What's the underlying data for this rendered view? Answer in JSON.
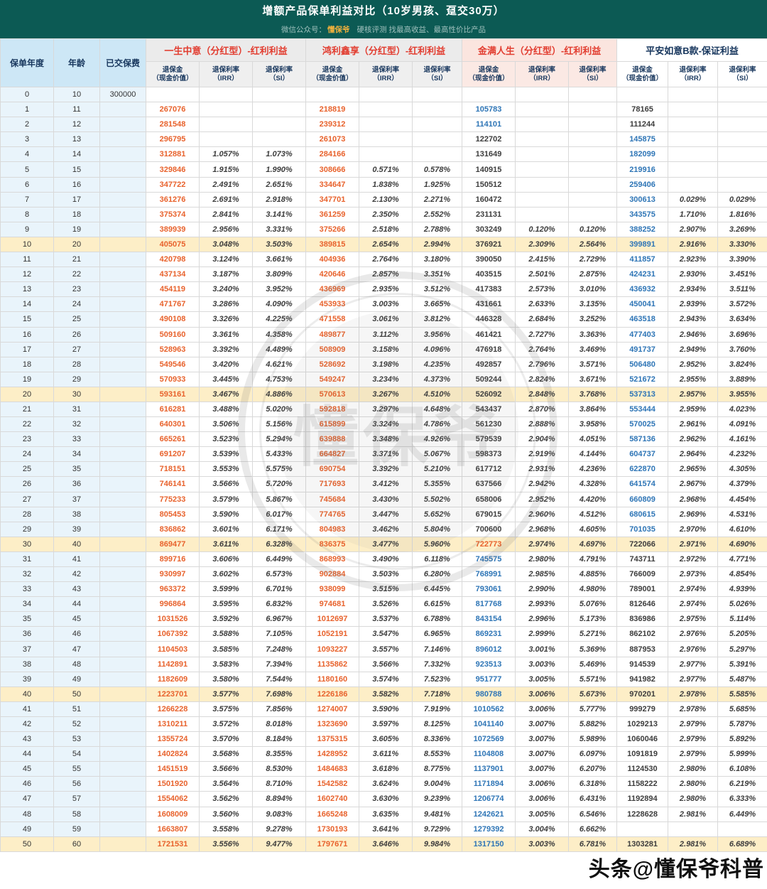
{
  "title": "增额产品保单利益对比（10岁男孩、趸交30万）",
  "subtitle": {
    "prefix": "微信公众号：",
    "brand": "懂保爷",
    "rest": "硬核评测 找最高收益、最高性价比产品"
  },
  "watermark_text": "头条@懂保爷科普",
  "seal_text": "懂保爷",
  "colors": {
    "header_bar": "#0c5a54",
    "brand_accent": "#f3b13c",
    "product_red": "#e23d30",
    "value_orange": "#e8622c",
    "value_blue": "#2e75b6",
    "row_highlight": "#fdeec7",
    "left_col_blue": "#e9f4fb"
  },
  "header": {
    "left_columns": [
      "保单年度",
      "年龄",
      "已交保费"
    ],
    "products": [
      {
        "name": "一生中意（分红型）-红利利益"
      },
      {
        "name": "鸿利鑫享（分红型）-红利利益"
      },
      {
        "name": "金满人生（分红型）-红利利益"
      },
      {
        "name": "平安如意B款-保证利益"
      }
    ],
    "sub_columns": [
      {
        "line1": "退保金",
        "line2": "（现金价值）"
      },
      {
        "line1": "退保利率",
        "line2": "（IRR）"
      },
      {
        "line1": "退保利率",
        "line2": "（SI）"
      }
    ]
  },
  "rows": [
    {
      "y": "0",
      "a": "10",
      "p": "300000",
      "v": [
        "",
        "",
        "",
        "",
        "",
        "",
        "",
        "",
        "",
        "",
        "",
        ""
      ],
      "c": "kkkk",
      "hl": false
    },
    {
      "y": "1",
      "a": "11",
      "p": "",
      "v": [
        "267076",
        "",
        "",
        "218819",
        "",
        "",
        "105783",
        "",
        "",
        "78165",
        "",
        ""
      ],
      "c": "oobk",
      "hl": false
    },
    {
      "y": "2",
      "a": "12",
      "p": "",
      "v": [
        "281548",
        "",
        "",
        "239312",
        "",
        "",
        "114101",
        "",
        "",
        "111244",
        "",
        ""
      ],
      "c": "oobk",
      "hl": false
    },
    {
      "y": "3",
      "a": "13",
      "p": "",
      "v": [
        "296795",
        "",
        "",
        "261073",
        "",
        "",
        "122702",
        "",
        "",
        "145875",
        "",
        ""
      ],
      "c": "ookb",
      "hl": false
    },
    {
      "y": "4",
      "a": "14",
      "p": "",
      "v": [
        "312881",
        "1.057%",
        "1.073%",
        "284166",
        "",
        "",
        "131649",
        "",
        "",
        "182099",
        "",
        ""
      ],
      "c": "ookb",
      "hl": false
    },
    {
      "y": "5",
      "a": "15",
      "p": "",
      "v": [
        "329846",
        "1.915%",
        "1.990%",
        "308666",
        "0.571%",
        "0.578%",
        "140915",
        "",
        "",
        "219916",
        "",
        ""
      ],
      "c": "ookb",
      "hl": false
    },
    {
      "y": "6",
      "a": "16",
      "p": "",
      "v": [
        "347722",
        "2.491%",
        "2.651%",
        "334647",
        "1.838%",
        "1.925%",
        "150512",
        "",
        "",
        "259406",
        "",
        ""
      ],
      "c": "ookb",
      "hl": false
    },
    {
      "y": "7",
      "a": "17",
      "p": "",
      "v": [
        "361276",
        "2.691%",
        "2.918%",
        "347701",
        "2.130%",
        "2.271%",
        "160472",
        "",
        "",
        "300613",
        "0.029%",
        "0.029%"
      ],
      "c": "ookb",
      "hl": false
    },
    {
      "y": "8",
      "a": "18",
      "p": "",
      "v": [
        "375374",
        "2.841%",
        "3.141%",
        "361259",
        "2.350%",
        "2.552%",
        "231131",
        "",
        "",
        "343575",
        "1.710%",
        "1.816%"
      ],
      "c": "ookb",
      "hl": false
    },
    {
      "y": "9",
      "a": "19",
      "p": "",
      "v": [
        "389939",
        "2.956%",
        "3.331%",
        "375266",
        "2.518%",
        "2.788%",
        "303249",
        "0.120%",
        "0.120%",
        "388252",
        "2.907%",
        "3.269%"
      ],
      "c": "ookb",
      "hl": false
    },
    {
      "y": "10",
      "a": "20",
      "p": "",
      "v": [
        "405075",
        "3.048%",
        "3.503%",
        "389815",
        "2.654%",
        "2.994%",
        "376921",
        "2.309%",
        "2.564%",
        "399891",
        "2.916%",
        "3.330%"
      ],
      "c": "ookb",
      "hl": true
    },
    {
      "y": "11",
      "a": "21",
      "p": "",
      "v": [
        "420798",
        "3.124%",
        "3.661%",
        "404936",
        "2.764%",
        "3.180%",
        "390050",
        "2.415%",
        "2.729%",
        "411857",
        "2.923%",
        "3.390%"
      ],
      "c": "ookb",
      "hl": false
    },
    {
      "y": "12",
      "a": "22",
      "p": "",
      "v": [
        "437134",
        "3.187%",
        "3.809%",
        "420646",
        "2.857%",
        "3.351%",
        "403515",
        "2.501%",
        "2.875%",
        "424231",
        "2.930%",
        "3.451%"
      ],
      "c": "ookb",
      "hl": false
    },
    {
      "y": "13",
      "a": "23",
      "p": "",
      "v": [
        "454119",
        "3.240%",
        "3.952%",
        "436969",
        "2.935%",
        "3.512%",
        "417383",
        "2.573%",
        "3.010%",
        "436932",
        "2.934%",
        "3.511%"
      ],
      "c": "ookb",
      "hl": false
    },
    {
      "y": "14",
      "a": "24",
      "p": "",
      "v": [
        "471767",
        "3.286%",
        "4.090%",
        "453933",
        "3.003%",
        "3.665%",
        "431661",
        "2.633%",
        "3.135%",
        "450041",
        "2.939%",
        "3.572%"
      ],
      "c": "ookb",
      "hl": false
    },
    {
      "y": "15",
      "a": "25",
      "p": "",
      "v": [
        "490108",
        "3.326%",
        "4.225%",
        "471558",
        "3.061%",
        "3.812%",
        "446328",
        "2.684%",
        "3.252%",
        "463518",
        "2.943%",
        "3.634%"
      ],
      "c": "ookb",
      "hl": false
    },
    {
      "y": "16",
      "a": "26",
      "p": "",
      "v": [
        "509160",
        "3.361%",
        "4.358%",
        "489877",
        "3.112%",
        "3.956%",
        "461421",
        "2.727%",
        "3.363%",
        "477403",
        "2.946%",
        "3.696%"
      ],
      "c": "ookb",
      "hl": false
    },
    {
      "y": "17",
      "a": "27",
      "p": "",
      "v": [
        "528963",
        "3.392%",
        "4.489%",
        "508909",
        "3.158%",
        "4.096%",
        "476918",
        "2.764%",
        "3.469%",
        "491737",
        "2.949%",
        "3.760%"
      ],
      "c": "ookb",
      "hl": false
    },
    {
      "y": "18",
      "a": "28",
      "p": "",
      "v": [
        "549546",
        "3.420%",
        "4.621%",
        "528692",
        "3.198%",
        "4.235%",
        "492857",
        "2.796%",
        "3.571%",
        "506480",
        "2.952%",
        "3.824%"
      ],
      "c": "ookb",
      "hl": false
    },
    {
      "y": "19",
      "a": "29",
      "p": "",
      "v": [
        "570933",
        "3.445%",
        "4.753%",
        "549247",
        "3.234%",
        "4.373%",
        "509244",
        "2.824%",
        "3.671%",
        "521672",
        "2.955%",
        "3.889%"
      ],
      "c": "ookb",
      "hl": false
    },
    {
      "y": "20",
      "a": "30",
      "p": "",
      "v": [
        "593161",
        "3.467%",
        "4.886%",
        "570613",
        "3.267%",
        "4.510%",
        "526092",
        "2.848%",
        "3.768%",
        "537313",
        "2.957%",
        "3.955%"
      ],
      "c": "ookb",
      "hl": true
    },
    {
      "y": "21",
      "a": "31",
      "p": "",
      "v": [
        "616281",
        "3.488%",
        "5.020%",
        "592818",
        "3.297%",
        "4.648%",
        "543437",
        "2.870%",
        "3.864%",
        "553444",
        "2.959%",
        "4.023%"
      ],
      "c": "ookb",
      "hl": false
    },
    {
      "y": "22",
      "a": "32",
      "p": "",
      "v": [
        "640301",
        "3.506%",
        "5.156%",
        "615899",
        "3.324%",
        "4.786%",
        "561230",
        "2.888%",
        "3.958%",
        "570025",
        "2.961%",
        "4.091%"
      ],
      "c": "ookb",
      "hl": false
    },
    {
      "y": "23",
      "a": "33",
      "p": "",
      "v": [
        "665261",
        "3.523%",
        "5.294%",
        "639888",
        "3.348%",
        "4.926%",
        "579539",
        "2.904%",
        "4.051%",
        "587136",
        "2.962%",
        "4.161%"
      ],
      "c": "ookb",
      "hl": false
    },
    {
      "y": "24",
      "a": "34",
      "p": "",
      "v": [
        "691207",
        "3.539%",
        "5.433%",
        "664827",
        "3.371%",
        "5.067%",
        "598373",
        "2.919%",
        "4.144%",
        "604737",
        "2.964%",
        "4.232%"
      ],
      "c": "ookb",
      "hl": false
    },
    {
      "y": "25",
      "a": "35",
      "p": "",
      "v": [
        "718151",
        "3.553%",
        "5.575%",
        "690754",
        "3.392%",
        "5.210%",
        "617712",
        "2.931%",
        "4.236%",
        "622870",
        "2.965%",
        "4.305%"
      ],
      "c": "ookb",
      "hl": false
    },
    {
      "y": "26",
      "a": "36",
      "p": "",
      "v": [
        "746141",
        "3.566%",
        "5.720%",
        "717693",
        "3.412%",
        "5.355%",
        "637566",
        "2.942%",
        "4.328%",
        "641574",
        "2.967%",
        "4.379%"
      ],
      "c": "ookb",
      "hl": false
    },
    {
      "y": "27",
      "a": "37",
      "p": "",
      "v": [
        "775233",
        "3.579%",
        "5.867%",
        "745684",
        "3.430%",
        "5.502%",
        "658006",
        "2.952%",
        "4.420%",
        "660809",
        "2.968%",
        "4.454%"
      ],
      "c": "ookb",
      "hl": false
    },
    {
      "y": "28",
      "a": "38",
      "p": "",
      "v": [
        "805453",
        "3.590%",
        "6.017%",
        "774765",
        "3.447%",
        "5.652%",
        "679015",
        "2.960%",
        "4.512%",
        "680615",
        "2.969%",
        "4.531%"
      ],
      "c": "ookb",
      "hl": false
    },
    {
      "y": "29",
      "a": "39",
      "p": "",
      "v": [
        "836862",
        "3.601%",
        "6.171%",
        "804983",
        "3.462%",
        "5.804%",
        "700600",
        "2.968%",
        "4.605%",
        "701035",
        "2.970%",
        "4.610%"
      ],
      "c": "ookb",
      "hl": false
    },
    {
      "y": "30",
      "a": "40",
      "p": "",
      "v": [
        "869477",
        "3.611%",
        "6.328%",
        "836375",
        "3.477%",
        "5.960%",
        "722773",
        "2.974%",
        "4.697%",
        "722066",
        "2.971%",
        "4.690%"
      ],
      "c": "oook",
      "hl": true
    },
    {
      "y": "31",
      "a": "41",
      "p": "",
      "v": [
        "899716",
        "3.606%",
        "6.449%",
        "868993",
        "3.490%",
        "6.118%",
        "745575",
        "2.980%",
        "4.791%",
        "743711",
        "2.972%",
        "4.771%"
      ],
      "c": "oobk",
      "hl": false
    },
    {
      "y": "32",
      "a": "42",
      "p": "",
      "v": [
        "930997",
        "3.602%",
        "6.573%",
        "902884",
        "3.503%",
        "6.280%",
        "768991",
        "2.985%",
        "4.885%",
        "766009",
        "2.973%",
        "4.854%"
      ],
      "c": "oobk",
      "hl": false
    },
    {
      "y": "33",
      "a": "43",
      "p": "",
      "v": [
        "963372",
        "3.599%",
        "6.701%",
        "938099",
        "3.515%",
        "6.445%",
        "793061",
        "2.990%",
        "4.980%",
        "789001",
        "2.974%",
        "4.939%"
      ],
      "c": "oobk",
      "hl": false
    },
    {
      "y": "34",
      "a": "44",
      "p": "",
      "v": [
        "996864",
        "3.595%",
        "6.832%",
        "974681",
        "3.526%",
        "6.615%",
        "817768",
        "2.993%",
        "5.076%",
        "812646",
        "2.974%",
        "5.026%"
      ],
      "c": "oobk",
      "hl": false
    },
    {
      "y": "35",
      "a": "45",
      "p": "",
      "v": [
        "1031526",
        "3.592%",
        "6.967%",
        "1012697",
        "3.537%",
        "6.788%",
        "843154",
        "2.996%",
        "5.173%",
        "836986",
        "2.975%",
        "5.114%"
      ],
      "c": "oobk",
      "hl": false
    },
    {
      "y": "36",
      "a": "46",
      "p": "",
      "v": [
        "1067392",
        "3.588%",
        "7.105%",
        "1052191",
        "3.547%",
        "6.965%",
        "869231",
        "2.999%",
        "5.271%",
        "862102",
        "2.976%",
        "5.205%"
      ],
      "c": "oobk",
      "hl": false
    },
    {
      "y": "37",
      "a": "47",
      "p": "",
      "v": [
        "1104503",
        "3.585%",
        "7.248%",
        "1093227",
        "3.557%",
        "7.146%",
        "896012",
        "3.001%",
        "5.369%",
        "887953",
        "2.976%",
        "5.297%"
      ],
      "c": "oobk",
      "hl": false
    },
    {
      "y": "38",
      "a": "48",
      "p": "",
      "v": [
        "1142891",
        "3.583%",
        "7.394%",
        "1135862",
        "3.566%",
        "7.332%",
        "923513",
        "3.003%",
        "5.469%",
        "914539",
        "2.977%",
        "5.391%"
      ],
      "c": "oobk",
      "hl": false
    },
    {
      "y": "39",
      "a": "49",
      "p": "",
      "v": [
        "1182609",
        "3.580%",
        "7.544%",
        "1180160",
        "3.574%",
        "7.523%",
        "951777",
        "3.005%",
        "5.571%",
        "941982",
        "2.977%",
        "5.487%"
      ],
      "c": "oobk",
      "hl": false
    },
    {
      "y": "40",
      "a": "50",
      "p": "",
      "v": [
        "1223701",
        "3.577%",
        "7.698%",
        "1226186",
        "3.582%",
        "7.718%",
        "980788",
        "3.006%",
        "5.673%",
        "970201",
        "2.978%",
        "5.585%"
      ],
      "c": "oobk",
      "hl": true
    },
    {
      "y": "41",
      "a": "51",
      "p": "",
      "v": [
        "1266228",
        "3.575%",
        "7.856%",
        "1274007",
        "3.590%",
        "7.919%",
        "1010562",
        "3.006%",
        "5.777%",
        "999279",
        "2.978%",
        "5.685%"
      ],
      "c": "oobk",
      "hl": false
    },
    {
      "y": "42",
      "a": "52",
      "p": "",
      "v": [
        "1310211",
        "3.572%",
        "8.018%",
        "1323690",
        "3.597%",
        "8.125%",
        "1041140",
        "3.007%",
        "5.882%",
        "1029213",
        "2.979%",
        "5.787%"
      ],
      "c": "oobk",
      "hl": false
    },
    {
      "y": "43",
      "a": "53",
      "p": "",
      "v": [
        "1355724",
        "3.570%",
        "8.184%",
        "1375315",
        "3.605%",
        "8.336%",
        "1072569",
        "3.007%",
        "5.989%",
        "1060046",
        "2.979%",
        "5.892%"
      ],
      "c": "oobk",
      "hl": false
    },
    {
      "y": "44",
      "a": "54",
      "p": "",
      "v": [
        "1402824",
        "3.568%",
        "8.355%",
        "1428952",
        "3.611%",
        "8.553%",
        "1104808",
        "3.007%",
        "6.097%",
        "1091819",
        "2.979%",
        "5.999%"
      ],
      "c": "oobk",
      "hl": false
    },
    {
      "y": "45",
      "a": "55",
      "p": "",
      "v": [
        "1451519",
        "3.566%",
        "8.530%",
        "1484683",
        "3.618%",
        "8.775%",
        "1137901",
        "3.007%",
        "6.207%",
        "1124530",
        "2.980%",
        "6.108%"
      ],
      "c": "oobk",
      "hl": false
    },
    {
      "y": "46",
      "a": "56",
      "p": "",
      "v": [
        "1501920",
        "3.564%",
        "8.710%",
        "1542582",
        "3.624%",
        "9.004%",
        "1171894",
        "3.006%",
        "6.318%",
        "1158222",
        "2.980%",
        "6.219%"
      ],
      "c": "oobk",
      "hl": false
    },
    {
      "y": "47",
      "a": "57",
      "p": "",
      "v": [
        "1554062",
        "3.562%",
        "8.894%",
        "1602740",
        "3.630%",
        "9.239%",
        "1206774",
        "3.006%",
        "6.431%",
        "1192894",
        "2.980%",
        "6.333%"
      ],
      "c": "oobk",
      "hl": false
    },
    {
      "y": "48",
      "a": "58",
      "p": "",
      "v": [
        "1608009",
        "3.560%",
        "9.083%",
        "1665248",
        "3.635%",
        "9.481%",
        "1242621",
        "3.005%",
        "6.546%",
        "1228628",
        "2.981%",
        "6.449%"
      ],
      "c": "oobk",
      "hl": false
    },
    {
      "y": "49",
      "a": "59",
      "p": "",
      "v": [
        "1663807",
        "3.558%",
        "9.278%",
        "1730193",
        "3.641%",
        "9.729%",
        "1279392",
        "3.004%",
        "6.662%",
        "",
        "",
        ""
      ],
      "c": "oobk",
      "hl": false
    },
    {
      "y": "50",
      "a": "60",
      "p": "",
      "v": [
        "1721531",
        "3.556%",
        "9.477%",
        "1797671",
        "3.646%",
        "9.984%",
        "1317150",
        "3.003%",
        "6.781%",
        "1303281",
        "2.981%",
        "6.689%"
      ],
      "c": "oobk",
      "hl": true
    }
  ]
}
